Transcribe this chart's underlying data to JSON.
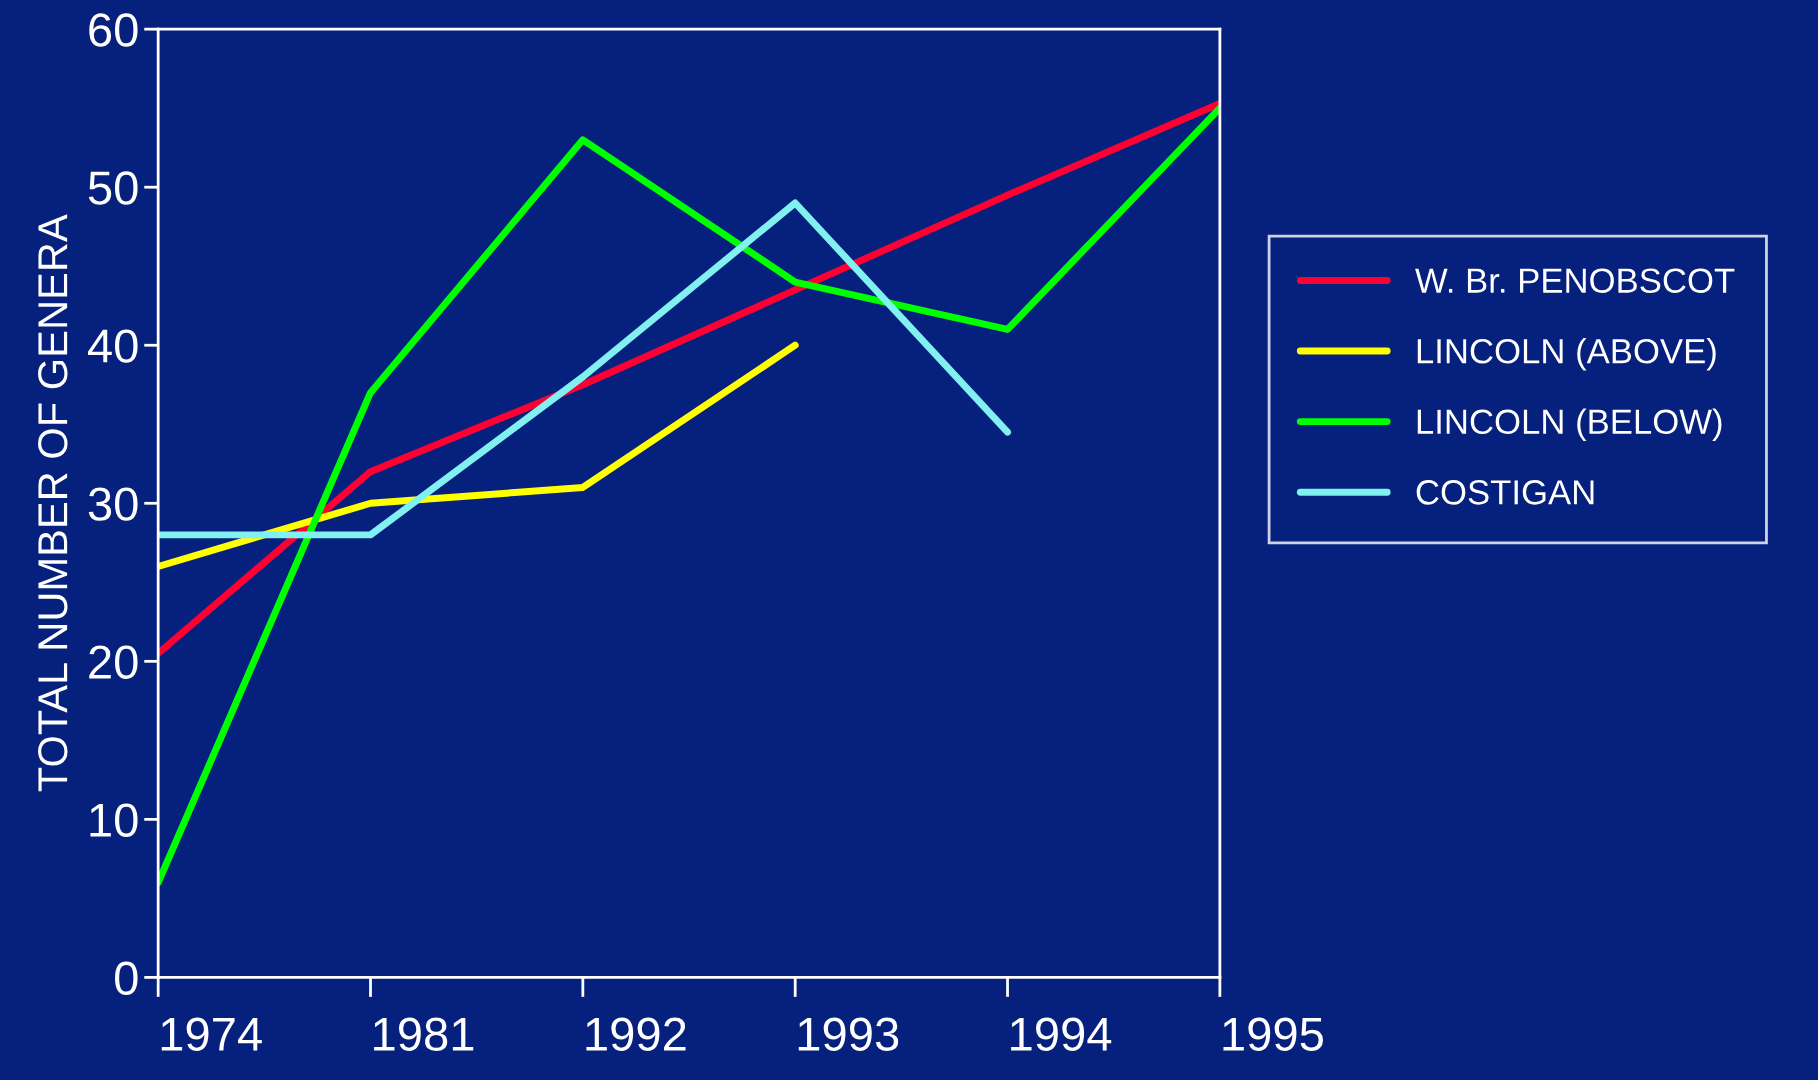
{
  "chart_data": {
    "type": "line",
    "ylabel": "TOTAL NUMBER OF GENERA",
    "categories": [
      "1974",
      "1981",
      "1992",
      "1993",
      "1994",
      "1995"
    ],
    "series": [
      {
        "name": "W. Br. PENOBSCOT",
        "color": "#ff0033",
        "values": [
          20.5,
          32,
          37.5,
          43.5,
          49.5,
          55.3
        ]
      },
      {
        "name": "LINCOLN (ABOVE)",
        "color": "#ffff00",
        "values": [
          26,
          30,
          31,
          40,
          null,
          null
        ]
      },
      {
        "name": "LINCOLN (BELOW)",
        "color": "#00ff00",
        "values": [
          6,
          37,
          53,
          44,
          41,
          55
        ]
      },
      {
        "name": "COSTIGAN",
        "color": "#80f0f0",
        "values": [
          28,
          28,
          38,
          49,
          34.5,
          null
        ]
      }
    ],
    "ylim": [
      0,
      60
    ],
    "yticks": [
      0,
      10,
      20,
      30,
      40,
      50,
      60
    ],
    "grid": false,
    "legend": "right",
    "line_style": "solid",
    "marker": "none"
  }
}
